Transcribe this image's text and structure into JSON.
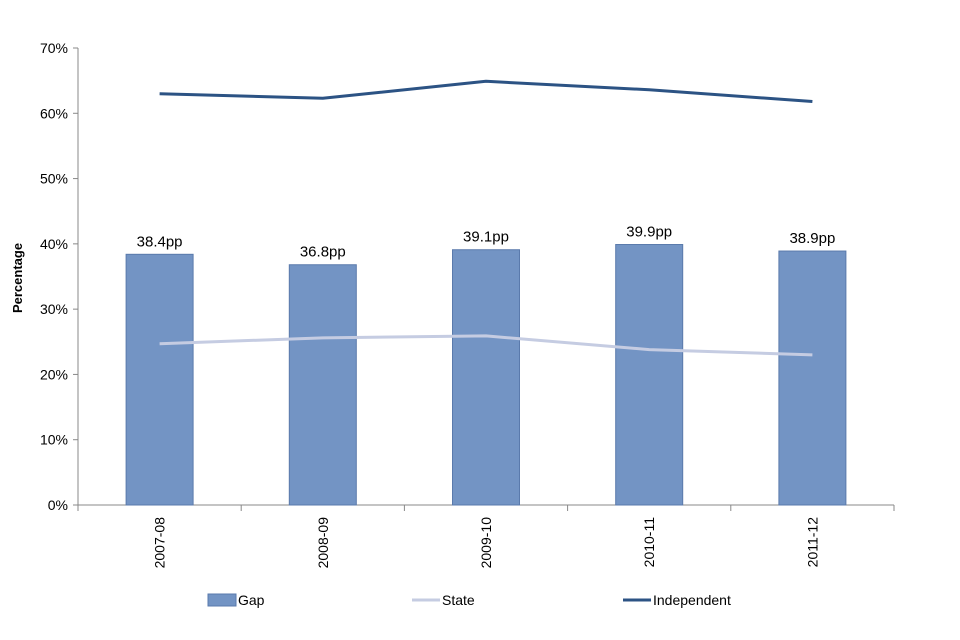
{
  "chart_data": {
    "type": "bar",
    "title": "",
    "xlabel": "",
    "ylabel": "Percentage",
    "ylim": [
      0,
      70
    ],
    "yticks": [
      "0%",
      "10%",
      "20%",
      "30%",
      "40%",
      "50%",
      "60%",
      "70%"
    ],
    "categories": [
      "2007-08",
      "2008-09",
      "2009-10",
      "2010-11",
      "2011-12"
    ],
    "series": [
      {
        "name": "Gap",
        "kind": "bar",
        "color": "#7394c4",
        "values": [
          38.4,
          36.8,
          39.1,
          39.9,
          38.9
        ],
        "labels": [
          "38.4pp",
          "36.8pp",
          "39.1pp",
          "39.9pp",
          "38.9pp"
        ]
      },
      {
        "name": "State",
        "kind": "line",
        "color": "#c5cce2",
        "values": [
          24.7,
          25.6,
          25.9,
          23.8,
          23.0
        ]
      },
      {
        "name": "Independent",
        "kind": "line",
        "color": "#2c5384",
        "values": [
          63.0,
          62.3,
          64.9,
          63.6,
          61.8
        ]
      }
    ],
    "grid": false,
    "legend_position": "bottom"
  }
}
